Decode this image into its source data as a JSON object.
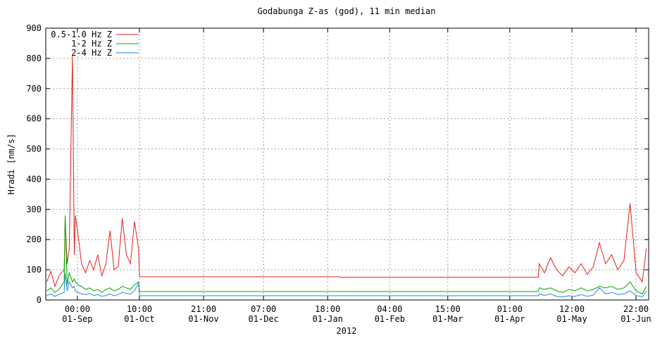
{
  "chart_data": {
    "type": "line",
    "title": "Godabunga Z-as (god), 11 min median",
    "y_label": "Hradi [nm/s]",
    "x_label": "2012",
    "x": [
      "17-Aug 00:00",
      "19-Aug 00:00",
      "21-Aug 00:00",
      "23-Aug 00:00",
      "25-Aug 12:00",
      "26-Aug 00:00",
      "27-Aug 00:00",
      "28-Aug 00:00",
      "29-Aug 14:00",
      "30-Aug 12:00",
      "31-Aug 00:00",
      "01-Sep 12:00",
      "03-Sep 00:00",
      "05-Sep 00:00",
      "07-Sep 00:00",
      "09-Sep 00:00",
      "11-Sep 00:00",
      "13-Sep 00:00",
      "15-Sep 00:00",
      "17-Sep 00:00",
      "19-Sep 00:00",
      "21-Sep 00:00",
      "23-Sep 00:00",
      "25-Sep 00:00",
      "27-Sep 00:00",
      "29-Sep 00:00",
      "01-Oct 00:00",
      "01-Oct 12:00",
      "07-Jan 00:00",
      "07-Jan 12:00",
      "15-Apr 00:00",
      "15-Apr 12:00",
      "18-Apr 00:00",
      "21-Apr 00:00",
      "24-Apr 00:00",
      "27-Apr 00:00",
      "30-Apr 00:00",
      "03-May 00:00",
      "06-May 00:00",
      "09-May 00:00",
      "12-May 00:00",
      "15-May 00:00",
      "18-May 00:00",
      "21-May 00:00",
      "24-May 00:00",
      "27-May 00:00",
      "30-May 00:00",
      "02-Jun 00:00",
      "05-Jun 00:00",
      "07-Jun 00:00"
    ],
    "series": [
      {
        "name": "0.5-1.0 Hz Z",
        "color": "#e0201b",
        "values": [
          60,
          95,
          45,
          80,
          100,
          270,
          120,
          170,
          810,
          150,
          280,
          210,
          120,
          90,
          130,
          100,
          150,
          80,
          120,
          230,
          100,
          110,
          270,
          150,
          120,
          260,
          170,
          77,
          77,
          75,
          75,
          120,
          90,
          140,
          100,
          80,
          110,
          90,
          120,
          85,
          110,
          190,
          120,
          150,
          100,
          130,
          320,
          90,
          60,
          170
        ]
      },
      {
        "name": "1-2 Hz Z",
        "color": "#00a800",
        "values": [
          30,
          40,
          25,
          35,
          60,
          280,
          50,
          90,
          60,
          70,
          60,
          50,
          45,
          35,
          40,
          30,
          35,
          25,
          35,
          40,
          30,
          35,
          45,
          40,
          35,
          50,
          60,
          28,
          28,
          28,
          28,
          40,
          35,
          40,
          30,
          25,
          35,
          30,
          40,
          30,
          35,
          45,
          40,
          45,
          35,
          40,
          60,
          30,
          20,
          45
        ]
      },
      {
        "name": "2-4 Hz Z",
        "color": "#1c8adb",
        "values": [
          15,
          20,
          12,
          18,
          25,
          90,
          30,
          60,
          40,
          45,
          30,
          25,
          20,
          18,
          22,
          15,
          18,
          12,
          15,
          20,
          14,
          18,
          25,
          22,
          20,
          30,
          55,
          14,
          14,
          14,
          14,
          20,
          15,
          20,
          12,
          10,
          14,
          12,
          18,
          12,
          16,
          40,
          20,
          25,
          18,
          20,
          30,
          15,
          10,
          30
        ]
      }
    ],
    "xlim": [
      "16-Aug 12:00",
      "08-Jun 03:00"
    ],
    "xticks": [
      {
        "value": "01-Sep 00:00",
        "label": [
          "00:00",
          "01-Sep"
        ]
      },
      {
        "value": "01-Oct 10:00",
        "label": [
          "10:00",
          "01-Oct"
        ]
      },
      {
        "value": "01-Nov 21:00",
        "label": [
          "21:00",
          "01-Nov"
        ]
      },
      {
        "value": "01-Dec 07:00",
        "label": [
          "07:00",
          "01-Dec"
        ]
      },
      {
        "value": "01-Jan 18:00",
        "label": [
          "18:00",
          "01-Jan"
        ]
      },
      {
        "value": "01-Feb 04:00",
        "label": [
          "04:00",
          "01-Feb"
        ]
      },
      {
        "value": "01-Mar 15:00",
        "label": [
          "15:00",
          "01-Mar"
        ]
      },
      {
        "value": "01-Apr 01:00",
        "label": [
          "01:00",
          "01-Apr"
        ]
      },
      {
        "value": "01-May 12:00",
        "label": [
          "12:00",
          "01-May"
        ]
      },
      {
        "value": "01-Jun 22:00",
        "label": [
          "22:00",
          "01-Jun"
        ]
      }
    ],
    "ylim": [
      0,
      900
    ],
    "yticks": [
      0,
      100,
      200,
      300,
      400,
      500,
      600,
      700,
      800,
      900
    ],
    "grid": true,
    "legend": "top-left"
  }
}
